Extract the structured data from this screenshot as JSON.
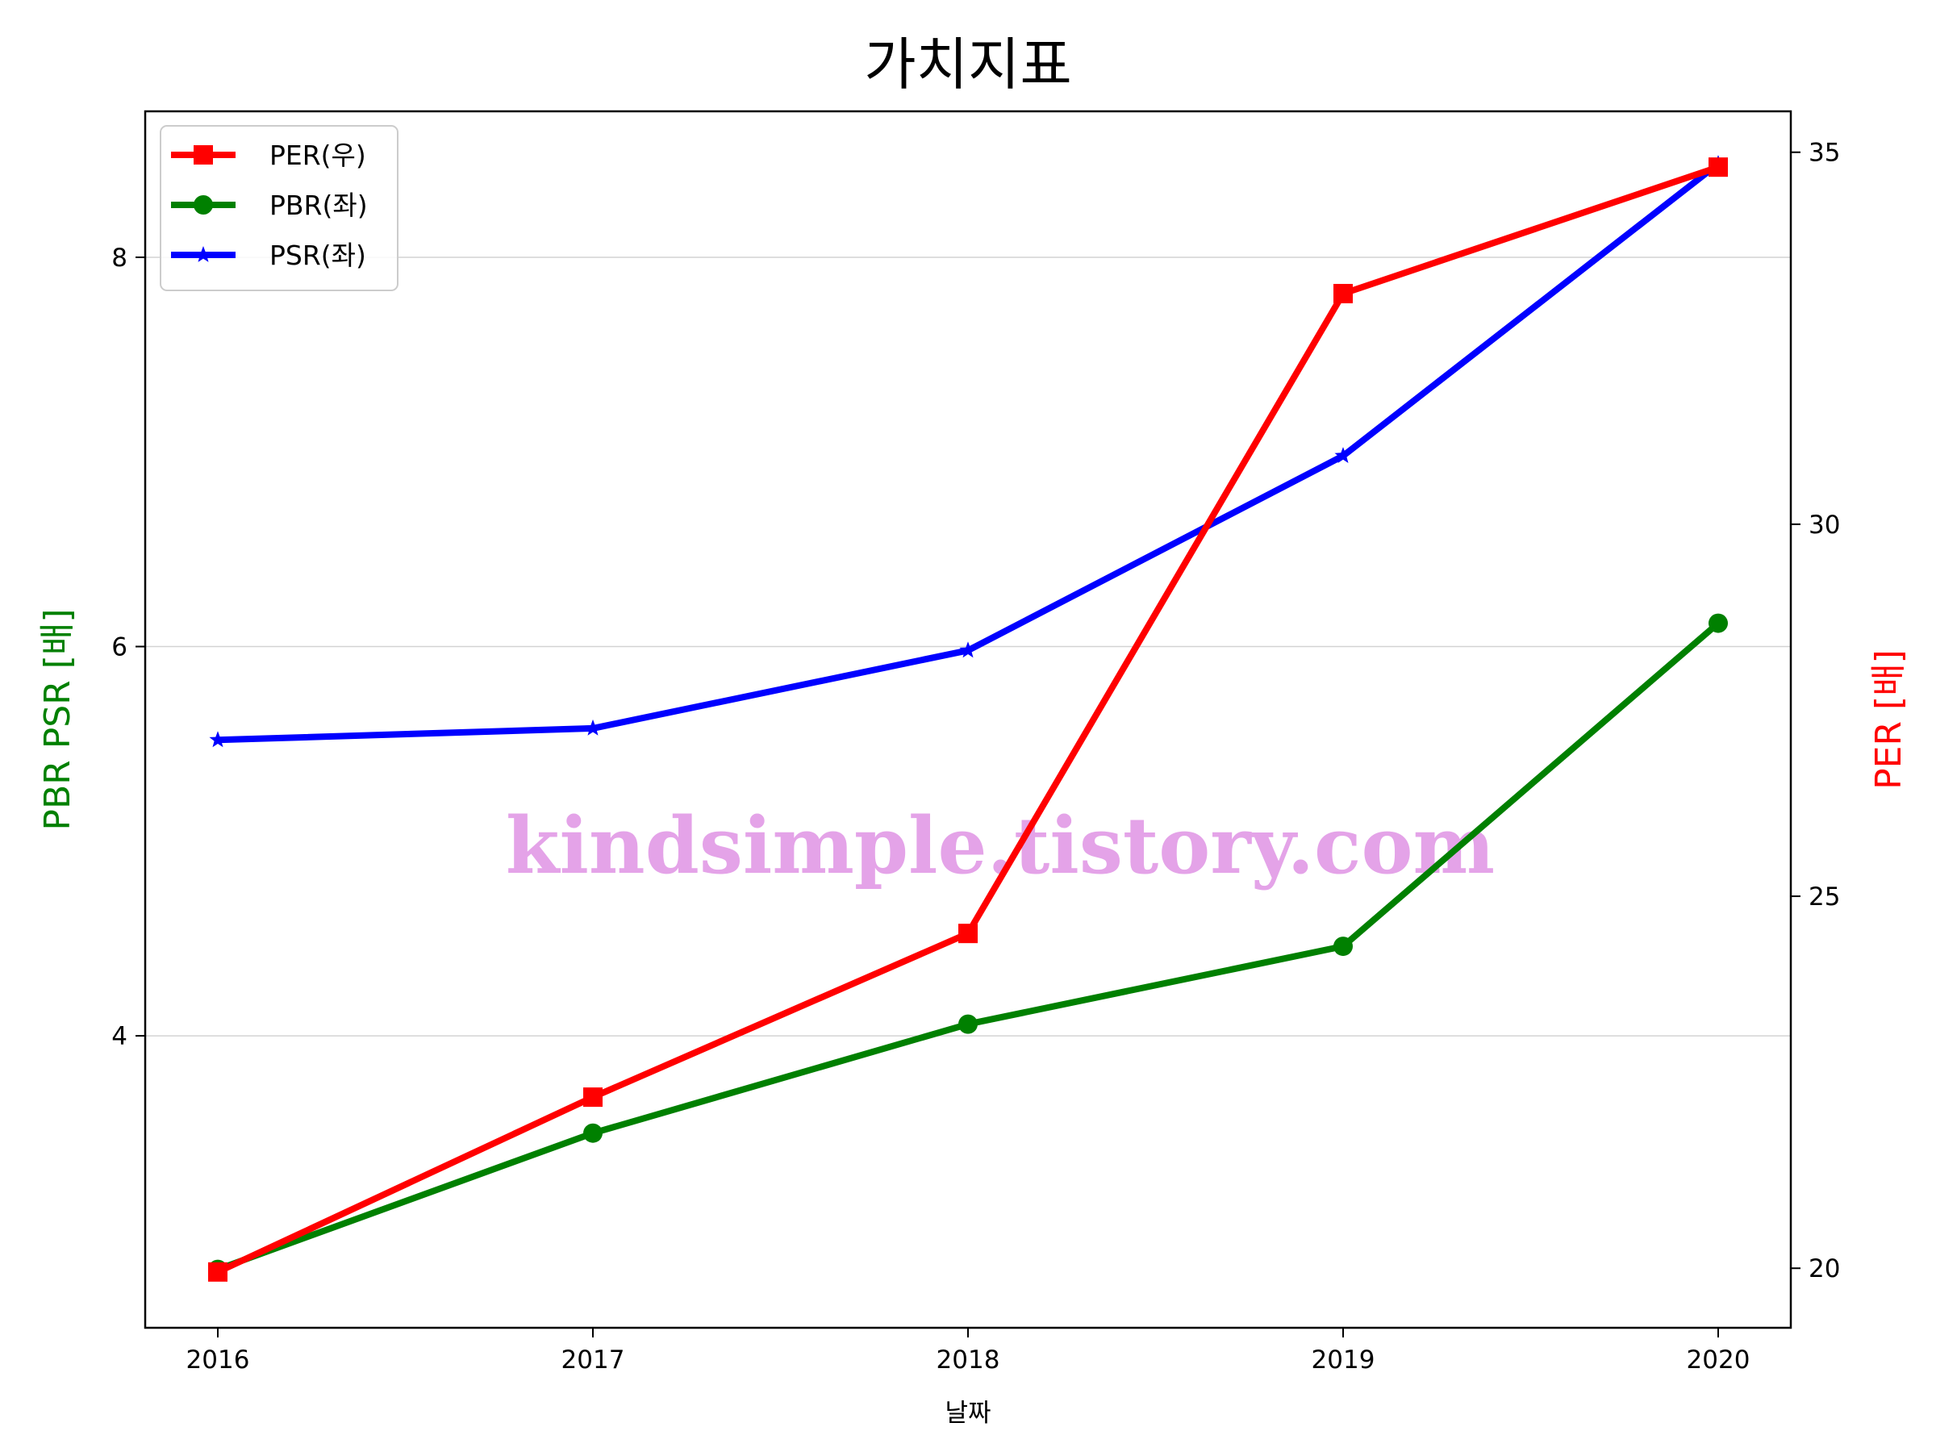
{
  "chart_data": {
    "type": "line",
    "title": "가치지표",
    "xlabel": "날짜",
    "ylabel_left": "PBR PSR [배]",
    "ylabel_right": "PER [배]",
    "categories": [
      "2016",
      "2017",
      "2018",
      "2019",
      "2020"
    ],
    "left_ylim": [
      2.5,
      8.75
    ],
    "right_ylim": [
      19.2,
      35.55
    ],
    "left_yticks": [
      4,
      6,
      8
    ],
    "right_yticks": [
      20,
      25,
      30,
      35
    ],
    "grid": "horizontal, left axis",
    "legend_position": "top-left",
    "series": [
      {
        "name": "PER(우)",
        "axis": "right",
        "color": "#ff0000",
        "marker": "square",
        "values": [
          19.95,
          22.3,
          24.5,
          33.1,
          34.8
        ]
      },
      {
        "name": "PBR(좌)",
        "axis": "left",
        "color": "#008000",
        "marker": "circle",
        "values": [
          2.8,
          3.5,
          4.06,
          4.46,
          6.12
        ]
      },
      {
        "name": "PSR(좌)",
        "axis": "left",
        "color": "#0000ff",
        "marker": "star",
        "values": [
          5.52,
          5.58,
          5.98,
          6.98,
          8.48
        ]
      }
    ]
  },
  "watermark": "kindsimple.tistory.com",
  "colors": {
    "watermark": "#e4a3e8",
    "left_axis_label": "#008000",
    "right_axis_label": "#ff0000"
  }
}
